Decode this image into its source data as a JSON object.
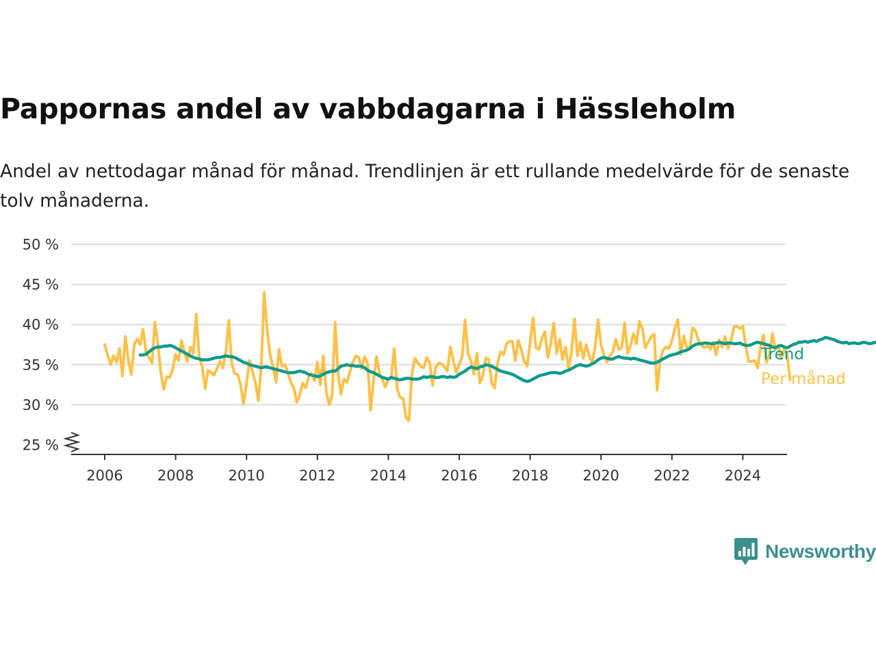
{
  "header": {
    "title": "Pappornas andel av vabbdagarna i Hässleholm",
    "subtitle": "Andel av nettodagar månad för månad. Trendlinjen är ett rullande medelvärde för de senaste tolv månaderna."
  },
  "brand": {
    "name": "Newsworthy",
    "icon": "newsworthy-logo-icon",
    "color": "#3b8f8c"
  },
  "chart_data": {
    "type": "line",
    "title": "Pappornas andel av vabbdagarna i Hässleholm",
    "xlabel": "",
    "ylabel": "",
    "x_ticks": [
      "2006",
      "2008",
      "2010",
      "2012",
      "2014",
      "2016",
      "2018",
      "2020",
      "2022",
      "2024"
    ],
    "y_ticks": [
      "25 %",
      "30 %",
      "35 %",
      "40 %",
      "45 %",
      "50 %"
    ],
    "ylim": [
      25,
      50
    ],
    "xlim": [
      "2005-01",
      "2025-04"
    ],
    "y_axis_break": true,
    "grid": true,
    "legend": "labels at right end of lines",
    "colors": {
      "trend": "#0e9a8c",
      "monthly": "#fcc14a",
      "grid": "#dddddd",
      "axis": "#333333"
    },
    "series": [
      {
        "name": "Trend",
        "start": "2007-01",
        "values": [
          36.2,
          36.2,
          36.3,
          36.6,
          36.9,
          37.1,
          37.2,
          37.2,
          37.3,
          37.3,
          37.4,
          37.3,
          37.1,
          36.9,
          36.7,
          36.5,
          36.3,
          36.1,
          35.9,
          35.8,
          35.7,
          35.6,
          35.6,
          35.6,
          35.7,
          35.8,
          35.9,
          35.9,
          36.0,
          36.1,
          36.0,
          36.0,
          35.9,
          35.7,
          35.5,
          35.3,
          35.2,
          35.0,
          34.9,
          34.8,
          34.7,
          34.6,
          34.7,
          34.7,
          34.6,
          34.5,
          34.4,
          34.3,
          34.2,
          34.1,
          34.0,
          34.0,
          34.0,
          34.1,
          34.2,
          34.1,
          34.0,
          33.8,
          33.7,
          33.6,
          33.5,
          33.6,
          33.8,
          34.0,
          34.1,
          34.2,
          34.2,
          34.5,
          34.8,
          34.9,
          35.0,
          34.9,
          34.9,
          34.8,
          34.8,
          34.8,
          34.6,
          34.3,
          34.1,
          34.0,
          33.8,
          33.6,
          33.4,
          33.3,
          33.2,
          33.4,
          33.3,
          33.2,
          33.1,
          33.2,
          33.3,
          33.3,
          33.2,
          33.2,
          33.2,
          33.3,
          33.5,
          33.4,
          33.5,
          33.5,
          33.4,
          33.4,
          33.5,
          33.5,
          33.4,
          33.5,
          33.4,
          33.5,
          33.8,
          34.0,
          34.2,
          34.5,
          34.7,
          34.6,
          34.5,
          34.7,
          34.8,
          35.0,
          34.9,
          34.8,
          34.6,
          34.4,
          34.2,
          34.1,
          34.0,
          33.9,
          33.8,
          33.6,
          33.4,
          33.2,
          33.0,
          32.9,
          33.0,
          33.2,
          33.4,
          33.6,
          33.7,
          33.8,
          33.9,
          34.0,
          34.0,
          34.0,
          33.9,
          34.0,
          34.2,
          34.3,
          34.5,
          34.7,
          34.9,
          35.0,
          34.9,
          34.8,
          34.9,
          35.1,
          35.3,
          35.6,
          35.8,
          35.9,
          35.8,
          35.7,
          35.7,
          35.9,
          36.0,
          35.9,
          35.8,
          35.8,
          35.7,
          35.8,
          35.7,
          35.6,
          35.5,
          35.4,
          35.3,
          35.2,
          35.2,
          35.3,
          35.5,
          35.7,
          35.9,
          36.1,
          36.2,
          36.3,
          36.4,
          36.6,
          36.7,
          36.8,
          37.0,
          37.3,
          37.5,
          37.6,
          37.6,
          37.7,
          37.7,
          37.6,
          37.6,
          37.7,
          37.8,
          37.7,
          37.6,
          37.7,
          37.7,
          37.6,
          37.6,
          37.7,
          37.5,
          37.4,
          37.4,
          37.5,
          37.7,
          37.8,
          37.7,
          37.6,
          37.5,
          37.4,
          37.2,
          37.1,
          37.3,
          37.4,
          37.2,
          37.1,
          37.3,
          37.5,
          37.6,
          37.8,
          37.8,
          37.9,
          37.8,
          37.9,
          38.0,
          37.9,
          38.1,
          38.2,
          38.4,
          38.3,
          38.2,
          38.1,
          37.9,
          37.8,
          37.7,
          37.8,
          37.6,
          37.7,
          37.7,
          37.6,
          37.7,
          37.8,
          37.7,
          37.6,
          37.7,
          37.8,
          37.7,
          37.6,
          37.9,
          38.1,
          38.3,
          38.4,
          38.3,
          38.2,
          38.3,
          38.2,
          38.1,
          38.0,
          37.9,
          37.8,
          37.8,
          37.7,
          37.8,
          37.9,
          37.8,
          37.7,
          37.8,
          37.6,
          37.8,
          37.7,
          37.8,
          37.9,
          38.0,
          38.2,
          38.4,
          38.3,
          38.4,
          38.3,
          38.2,
          38.1,
          38.0,
          37.9,
          37.8,
          37.8,
          37.9,
          37.7,
          37.6,
          37.4,
          37.0,
          36.7,
          36.5,
          36.2,
          36.0,
          36.0,
          36.1,
          36.2,
          36.0,
          36.1,
          36.1,
          36.0,
          35.9
        ]
      },
      {
        "name": "Per månad",
        "start": "2006-01",
        "values": [
          37.5,
          36.2,
          35.0,
          36.1,
          35.3,
          37.0,
          33.6,
          38.5,
          35.6,
          33.8,
          37.5,
          38.2,
          37.5,
          39.4,
          36.5,
          35.9,
          35.2,
          40.3,
          37.6,
          34.0,
          31.9,
          33.5,
          33.4,
          34.4,
          36.3,
          35.5,
          38.0,
          36.5,
          35.4,
          37.2,
          36.4,
          41.3,
          35.9,
          34.8,
          32.0,
          34.3,
          34.0,
          33.7,
          34.5,
          35.4,
          34.6,
          36.6,
          40.5,
          35.1,
          33.9,
          33.8,
          32.5,
          30.1,
          32.6,
          35.5,
          34.2,
          32.8,
          30.5,
          34.9,
          44.0,
          39.3,
          36.2,
          34.7,
          32.8,
          36.9,
          34.8,
          35.0,
          34.0,
          32.8,
          32.1,
          30.3,
          31.2,
          32.7,
          32.1,
          33.4,
          33.9,
          33.0,
          35.3,
          32.5,
          36.1,
          31.6,
          30.0,
          31.2,
          40.3,
          33.8,
          31.3,
          33.2,
          32.8,
          34.1,
          35.3,
          36.1,
          35.9,
          34.5,
          36.0,
          35.1,
          29.3,
          33.0,
          36.0,
          33.9,
          33.1,
          32.2,
          33.2,
          33.5,
          37.0,
          32.0,
          30.9,
          30.8,
          28.4,
          28.0,
          33.8,
          35.8,
          35.2,
          34.8,
          34.6,
          35.9,
          35.3,
          32.4,
          34.6,
          35.2,
          35.1,
          34.7,
          34.2,
          37.2,
          35.5,
          34.0,
          35.0,
          36.0,
          40.6,
          36.4,
          35.4,
          33.8,
          36.4,
          32.7,
          33.6,
          35.8,
          35.7,
          32.7,
          32.1,
          35.2,
          36.6,
          36.2,
          37.6,
          37.9,
          37.9,
          35.5,
          38.0,
          36.9,
          35.4,
          34.8,
          37.8,
          40.8,
          37.1,
          36.9,
          38.3,
          39.1,
          35.9,
          37.6,
          40.2,
          36.4,
          38.2,
          35.6,
          37.2,
          34.4,
          36.5,
          40.7,
          36.1,
          37.8,
          35.8,
          37.5,
          36.1,
          35.2,
          37.2,
          40.6,
          37.5,
          36.2,
          35.3,
          36.1,
          36.6,
          38.2,
          36.9,
          37.1,
          40.2,
          36.4,
          37.4,
          38.9,
          37.6,
          40.4,
          39.5,
          37.1,
          37.8,
          38.5,
          38.8,
          31.8,
          35.4,
          36.8,
          37.2,
          37.0,
          38.0,
          39.5,
          40.6,
          36.3,
          38.6,
          37.2,
          36.9,
          39.6,
          39.2,
          38.0,
          37.4,
          37.1,
          37.4,
          36.9,
          37.8,
          36.2,
          38.1,
          37.2,
          38.5,
          37.0,
          38.0,
          39.7,
          39.8,
          39.5,
          39.8,
          37.3,
          35.4,
          35.4,
          35.5,
          34.6,
          37.2,
          38.7,
          35.3,
          36.2,
          38.9,
          36.9,
          37.4,
          35.7,
          37.0,
          36.2,
          33.1
        ]
      }
    ]
  }
}
